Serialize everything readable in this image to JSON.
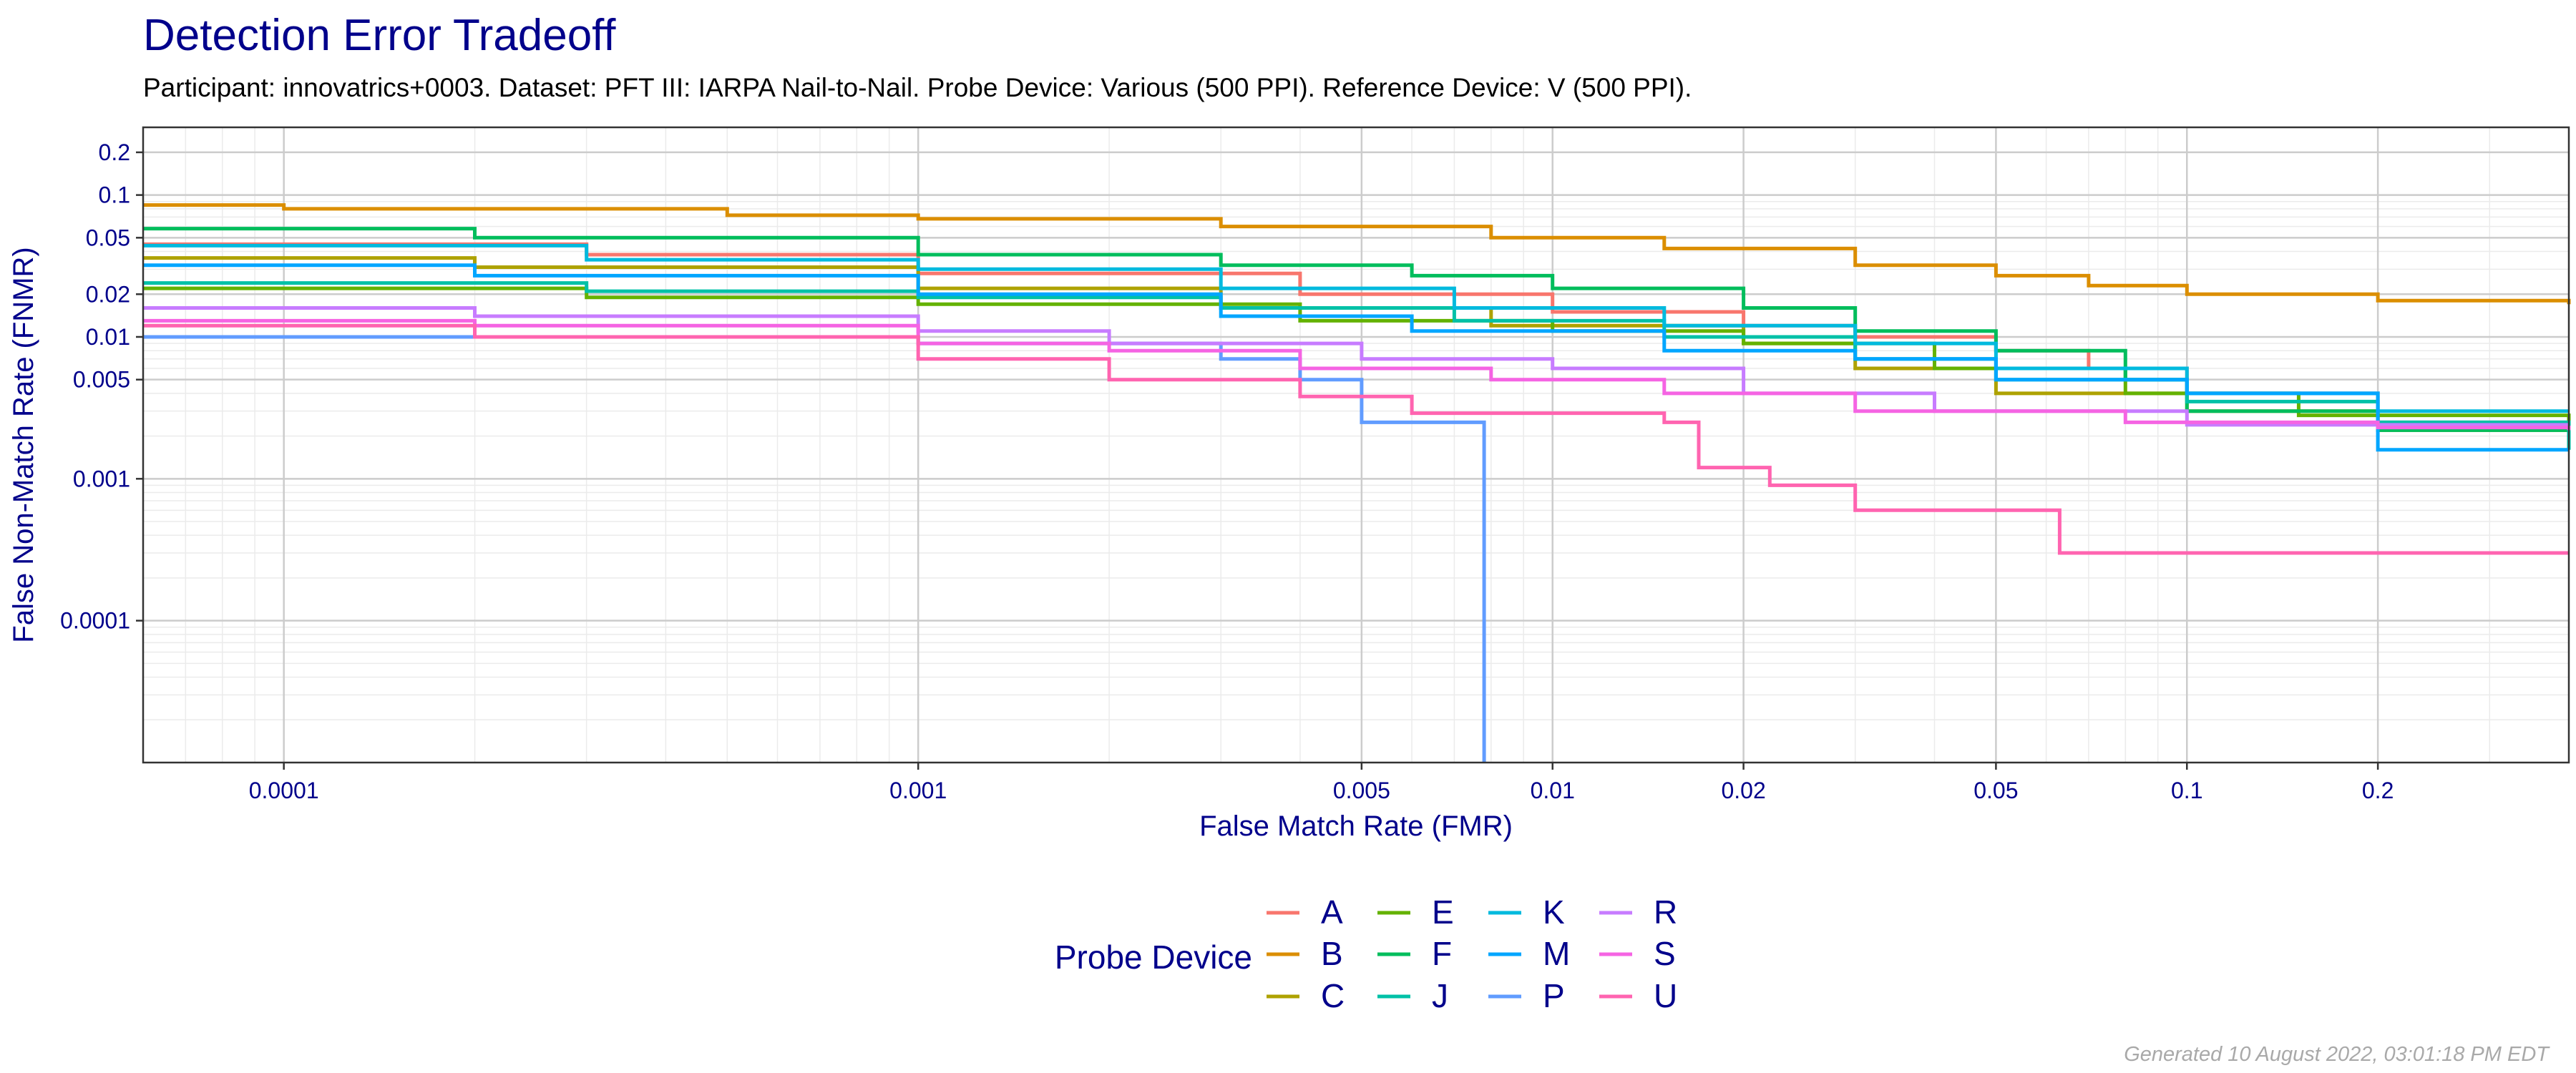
{
  "title": "Detection Error Tradeoff",
  "subtitle": "Participant: innovatrics+0003. Dataset: PFT III: IARPA Nail-to-Nail. Probe Device: Various (500 PPI). Reference Device: V (500 PPI).",
  "footer": "Generated 10 August 2022, 03:01:18 PM EDT",
  "chart_data": {
    "type": "line",
    "title": "Detection Error Tradeoff",
    "xlabel": "False Match Rate (FMR)",
    "ylabel": "False Non-Match Rate (FNMR)",
    "xscale": "log",
    "yscale": "log",
    "xlim": [
      6e-05,
      0.4
    ],
    "ylim": [
      1e-05,
      0.3
    ],
    "x_ticks": [
      {
        "value": 0.0001,
        "label": "0.0001"
      },
      {
        "value": 0.001,
        "label": "0.001"
      },
      {
        "value": 0.005,
        "label": "0.005"
      },
      {
        "value": 0.01,
        "label": "0.01"
      },
      {
        "value": 0.02,
        "label": "0.02"
      },
      {
        "value": 0.05,
        "label": "0.05"
      },
      {
        "value": 0.1,
        "label": "0.1"
      },
      {
        "value": 0.2,
        "label": "0.2"
      }
    ],
    "y_ticks": [
      {
        "value": 0.0001,
        "label": "0.0001"
      },
      {
        "value": 0.001,
        "label": "0.001"
      },
      {
        "value": 0.005,
        "label": "0.005"
      },
      {
        "value": 0.01,
        "label": "0.01"
      },
      {
        "value": 0.02,
        "label": "0.02"
      },
      {
        "value": 0.05,
        "label": "0.05"
      },
      {
        "value": 0.1,
        "label": "0.1"
      },
      {
        "value": 0.2,
        "label": "0.2"
      }
    ],
    "grid": true,
    "legend_title": "Probe Device",
    "legend_position": "bottom",
    "series": [
      {
        "name": "A",
        "color": "#f8766d",
        "points": [
          [
            6e-05,
            0.045
          ],
          [
            0.0003,
            0.038
          ],
          [
            0.001,
            0.028
          ],
          [
            0.004,
            0.02
          ],
          [
            0.01,
            0.015
          ],
          [
            0.02,
            0.012
          ],
          [
            0.03,
            0.01
          ],
          [
            0.05,
            0.008
          ],
          [
            0.07,
            0.006
          ],
          [
            0.1,
            0.004
          ],
          [
            0.2,
            0.0025
          ],
          [
            0.4,
            0.002
          ]
        ]
      },
      {
        "name": "B",
        "color": "#db8e00",
        "points": [
          [
            6e-05,
            0.085
          ],
          [
            0.0001,
            0.08
          ],
          [
            0.0005,
            0.072
          ],
          [
            0.001,
            0.068
          ],
          [
            0.003,
            0.06
          ],
          [
            0.008,
            0.05
          ],
          [
            0.015,
            0.042
          ],
          [
            0.03,
            0.032
          ],
          [
            0.05,
            0.027
          ],
          [
            0.07,
            0.023
          ],
          [
            0.1,
            0.02
          ],
          [
            0.2,
            0.018
          ],
          [
            0.4,
            0.017
          ]
        ]
      },
      {
        "name": "C",
        "color": "#aea200",
        "points": [
          [
            6e-05,
            0.036
          ],
          [
            0.0002,
            0.031
          ],
          [
            0.001,
            0.022
          ],
          [
            0.003,
            0.016
          ],
          [
            0.008,
            0.012
          ],
          [
            0.02,
            0.009
          ],
          [
            0.03,
            0.006
          ],
          [
            0.05,
            0.004
          ],
          [
            0.1,
            0.003
          ],
          [
            0.2,
            0.0022
          ],
          [
            0.4,
            0.0018
          ]
        ]
      },
      {
        "name": "E",
        "color": "#64b200",
        "points": [
          [
            6e-05,
            0.022
          ],
          [
            0.0003,
            0.019
          ],
          [
            0.001,
            0.017
          ],
          [
            0.004,
            0.013
          ],
          [
            0.01,
            0.011
          ],
          [
            0.02,
            0.009
          ],
          [
            0.04,
            0.006
          ],
          [
            0.08,
            0.004
          ],
          [
            0.15,
            0.0028
          ],
          [
            0.4,
            0.0018
          ]
        ]
      },
      {
        "name": "F",
        "color": "#00bd5c",
        "points": [
          [
            6e-05,
            0.058
          ],
          [
            0.0002,
            0.05
          ],
          [
            0.001,
            0.038
          ],
          [
            0.003,
            0.032
          ],
          [
            0.006,
            0.027
          ],
          [
            0.01,
            0.022
          ],
          [
            0.02,
            0.016
          ],
          [
            0.03,
            0.011
          ],
          [
            0.05,
            0.008
          ],
          [
            0.08,
            0.005
          ],
          [
            0.1,
            0.003
          ],
          [
            0.2,
            0.0022
          ],
          [
            0.4,
            0.0017
          ]
        ]
      },
      {
        "name": "J",
        "color": "#00c1a7",
        "points": [
          [
            6e-05,
            0.024
          ],
          [
            0.0003,
            0.021
          ],
          [
            0.001,
            0.019
          ],
          [
            0.003,
            0.016
          ],
          [
            0.007,
            0.013
          ],
          [
            0.015,
            0.01
          ],
          [
            0.03,
            0.007
          ],
          [
            0.05,
            0.005
          ],
          [
            0.1,
            0.0035
          ],
          [
            0.2,
            0.0025
          ],
          [
            0.4,
            0.0016
          ]
        ]
      },
      {
        "name": "K",
        "color": "#00bade",
        "points": [
          [
            6e-05,
            0.044
          ],
          [
            0.0003,
            0.035
          ],
          [
            0.001,
            0.03
          ],
          [
            0.003,
            0.022
          ],
          [
            0.007,
            0.016
          ],
          [
            0.015,
            0.012
          ],
          [
            0.03,
            0.009
          ],
          [
            0.05,
            0.006
          ],
          [
            0.1,
            0.004
          ],
          [
            0.2,
            0.003
          ],
          [
            0.4,
            0.003
          ]
        ]
      },
      {
        "name": "M",
        "color": "#00a6ff",
        "points": [
          [
            6e-05,
            0.032
          ],
          [
            0.0002,
            0.027
          ],
          [
            0.001,
            0.02
          ],
          [
            0.003,
            0.014
          ],
          [
            0.006,
            0.011
          ],
          [
            0.015,
            0.008
          ],
          [
            0.03,
            0.007
          ],
          [
            0.05,
            0.005
          ],
          [
            0.1,
            0.004
          ],
          [
            0.2,
            0.0016
          ],
          [
            0.4,
            0.0016
          ]
        ]
      },
      {
        "name": "P",
        "color": "#619cff",
        "points": [
          [
            6e-05,
            0.01
          ],
          [
            0.0003,
            0.01
          ],
          [
            0.001,
            0.009
          ],
          [
            0.003,
            0.007
          ],
          [
            0.004,
            0.005
          ],
          [
            0.005,
            0.0025
          ],
          [
            0.0078,
            0.0025
          ],
          [
            0.0078,
            1e-05
          ]
        ]
      },
      {
        "name": "R",
        "color": "#c77cff",
        "points": [
          [
            6e-05,
            0.016
          ],
          [
            0.0002,
            0.014
          ],
          [
            0.001,
            0.011
          ],
          [
            0.002,
            0.009
          ],
          [
            0.005,
            0.007
          ],
          [
            0.01,
            0.006
          ],
          [
            0.02,
            0.004
          ],
          [
            0.04,
            0.003
          ],
          [
            0.1,
            0.0024
          ],
          [
            0.2,
            0.0024
          ],
          [
            0.4,
            0.0024
          ]
        ]
      },
      {
        "name": "S",
        "color": "#f564e3",
        "points": [
          [
            6e-05,
            0.013
          ],
          [
            0.0002,
            0.012
          ],
          [
            0.001,
            0.009
          ],
          [
            0.002,
            0.008
          ],
          [
            0.004,
            0.006
          ],
          [
            0.008,
            0.005
          ],
          [
            0.015,
            0.004
          ],
          [
            0.03,
            0.003
          ],
          [
            0.08,
            0.0025
          ],
          [
            0.2,
            0.0023
          ],
          [
            0.4,
            0.0022
          ]
        ]
      },
      {
        "name": "U",
        "color": "#ff64b0",
        "points": [
          [
            6e-05,
            0.012
          ],
          [
            0.0002,
            0.01
          ],
          [
            0.001,
            0.007
          ],
          [
            0.002,
            0.005
          ],
          [
            0.004,
            0.0038
          ],
          [
            0.006,
            0.0029
          ],
          [
            0.015,
            0.0025
          ],
          [
            0.017,
            0.0012
          ],
          [
            0.022,
            0.0009
          ],
          [
            0.03,
            0.0006
          ],
          [
            0.062,
            0.0006
          ],
          [
            0.063,
            0.0003
          ],
          [
            0.4,
            0.0003
          ]
        ]
      }
    ]
  }
}
